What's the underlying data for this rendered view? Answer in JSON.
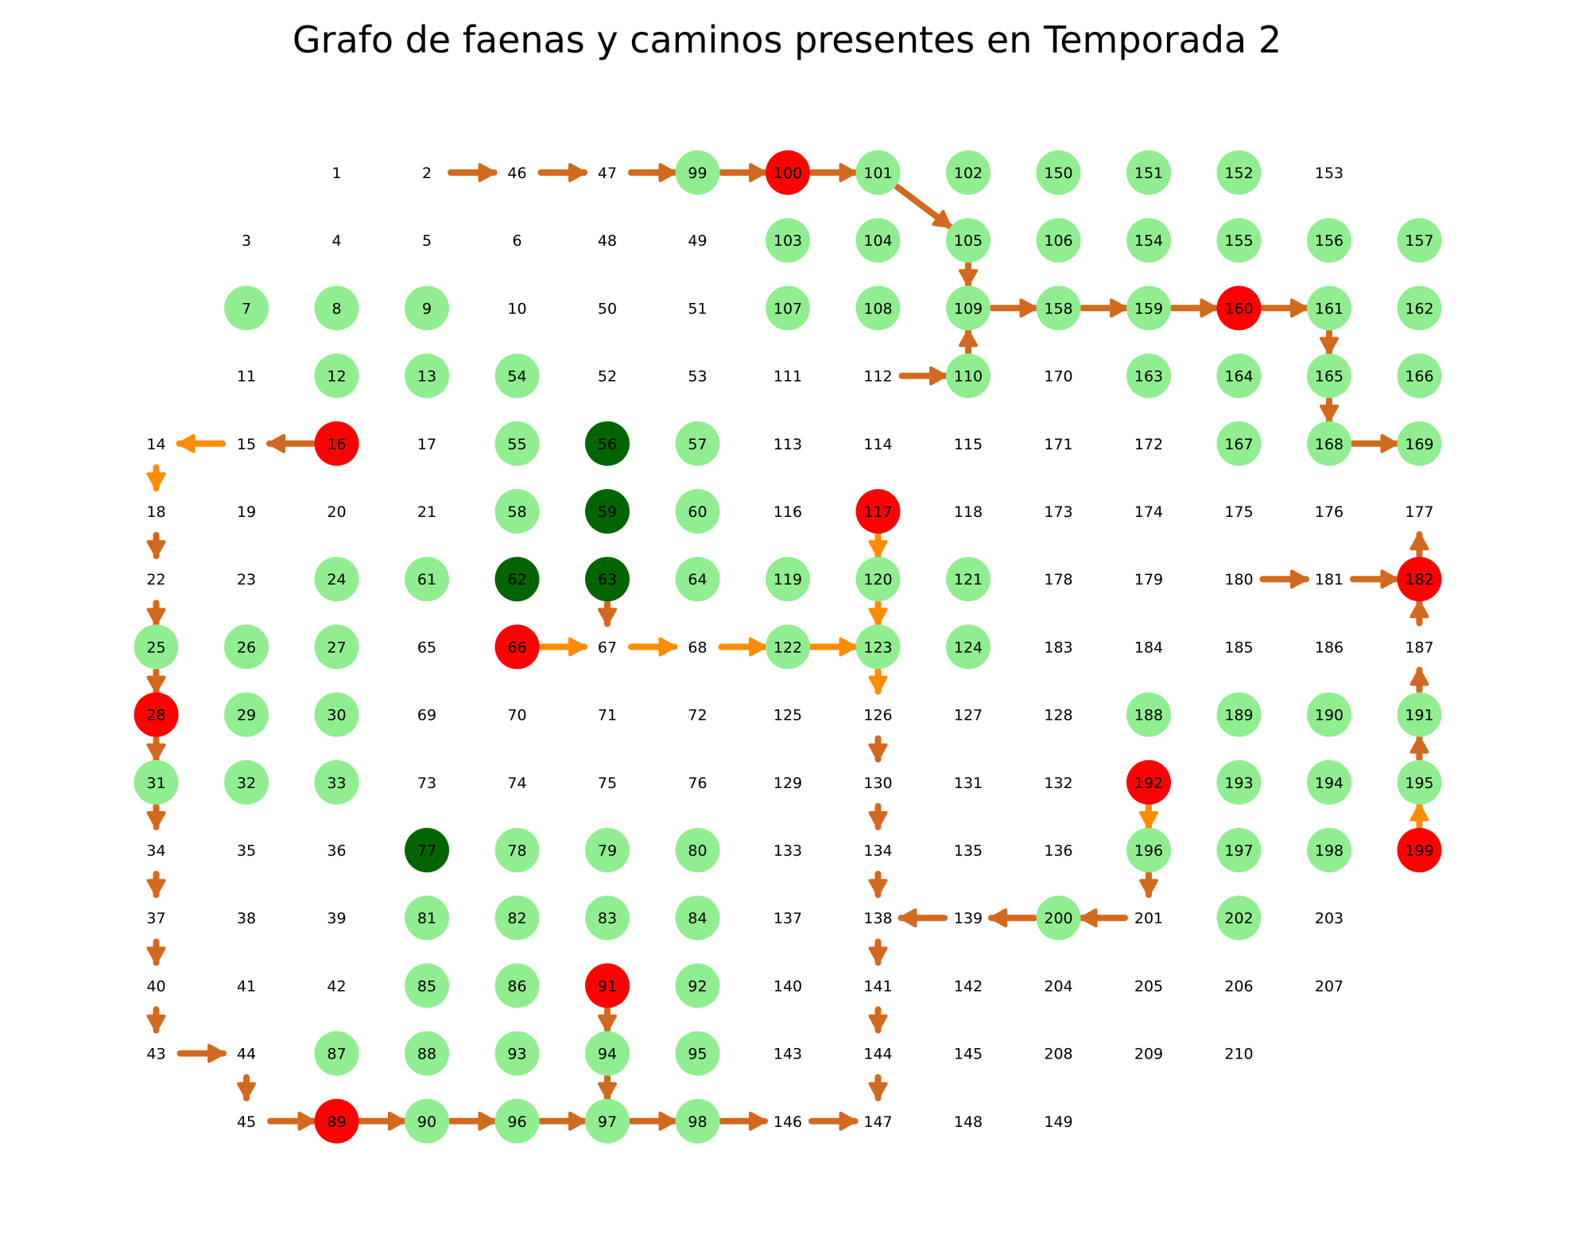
{
  "title": "Grafo de faenas y caminos presentes en Temporada 2",
  "colors": {
    "light_green": "#90ee90",
    "dark_green": "#006400",
    "red": "#ff0000",
    "edge_brown": "#d2691e",
    "edge_orange": "#ff8c00",
    "label": "#000000"
  },
  "grid": {
    "rows": [
      [
        "",
        "",
        "",
        "1",
        "2",
        "46",
        "47",
        "99",
        "100",
        "101",
        "102",
        "150",
        "151",
        "152",
        "153"
      ],
      [
        "",
        "",
        "3",
        "4",
        "5",
        "6",
        "48",
        "49",
        "103",
        "104",
        "105",
        "106",
        "154",
        "155",
        "156",
        "157"
      ],
      [
        "",
        "",
        "7",
        "8",
        "9",
        "10",
        "50",
        "51",
        "107",
        "108",
        "109",
        "158",
        "159",
        "160",
        "161",
        "162"
      ],
      [
        "",
        "",
        "11",
        "12",
        "13",
        "54",
        "52",
        "53",
        "111",
        "112",
        "110",
        "170",
        "163",
        "164",
        "165",
        "166"
      ],
      [
        "",
        "14",
        "15",
        "16",
        "17",
        "55",
        "56",
        "57",
        "113",
        "114",
        "115",
        "171",
        "172",
        "167",
        "168",
        "169"
      ],
      [
        "",
        "18",
        "19",
        "20",
        "21",
        "58",
        "59",
        "60",
        "116",
        "117",
        "118",
        "173",
        "174",
        "175",
        "176",
        "177"
      ],
      [
        "",
        "22",
        "23",
        "24",
        "61",
        "62",
        "63",
        "64",
        "119",
        "120",
        "121",
        "178",
        "179",
        "180",
        "181",
        "182"
      ],
      [
        "",
        "25",
        "26",
        "27",
        "65",
        "66",
        "67",
        "68",
        "122",
        "123",
        "124",
        "183",
        "184",
        "185",
        "186",
        "187"
      ],
      [
        "",
        "28",
        "29",
        "30",
        "69",
        "70",
        "71",
        "72",
        "125",
        "126",
        "127",
        "128",
        "188",
        "189",
        "190",
        "191"
      ],
      [
        "",
        "31",
        "32",
        "33",
        "73",
        "74",
        "75",
        "76",
        "129",
        "130",
        "131",
        "132",
        "192",
        "193",
        "194",
        "195"
      ],
      [
        "",
        "34",
        "35",
        "36",
        "77",
        "78",
        "79",
        "80",
        "133",
        "134",
        "135",
        "136",
        "196",
        "197",
        "198",
        "199"
      ],
      [
        "",
        "37",
        "38",
        "39",
        "81",
        "82",
        "83",
        "84",
        "137",
        "138",
        "139",
        "200",
        "201",
        "202",
        "203",
        ""
      ],
      [
        "",
        "40",
        "41",
        "42",
        "85",
        "86",
        "91",
        "92",
        "140",
        "141",
        "142",
        "204",
        "205",
        "206",
        "207",
        ""
      ],
      [
        "",
        "43",
        "44",
        "87",
        "88",
        "93",
        "94",
        "95",
        "143",
        "144",
        "145",
        "208",
        "209",
        "210",
        "",
        ""
      ],
      [
        "",
        "",
        "45",
        "89",
        "90",
        "96",
        "97",
        "98",
        "146",
        "147",
        "148",
        "149",
        "",
        "",
        "",
        ""
      ]
    ]
  },
  "node_status": {
    "light": [
      "7",
      "8",
      "9",
      "12",
      "13",
      "24",
      "25",
      "26",
      "27",
      "29",
      "30",
      "31",
      "32",
      "33",
      "54",
      "55",
      "57",
      "58",
      "60",
      "61",
      "64",
      "78",
      "79",
      "80",
      "81",
      "82",
      "83",
      "84",
      "85",
      "86",
      "87",
      "88",
      "90",
      "92",
      "93",
      "94",
      "95",
      "96",
      "97",
      "98",
      "99",
      "101",
      "102",
      "103",
      "104",
      "105",
      "106",
      "107",
      "108",
      "109",
      "110",
      "119",
      "120",
      "121",
      "122",
      "123",
      "124",
      "150",
      "151",
      "152",
      "154",
      "155",
      "156",
      "157",
      "158",
      "159",
      "161",
      "162",
      "163",
      "164",
      "165",
      "166",
      "167",
      "168",
      "169",
      "188",
      "189",
      "190",
      "191",
      "193",
      "194",
      "195",
      "196",
      "197",
      "198",
      "200",
      "202"
    ],
    "dark": [
      "56",
      "59",
      "62",
      "63",
      "77"
    ],
    "red": [
      "16",
      "28",
      "66",
      "89",
      "91",
      "100",
      "117",
      "160",
      "182",
      "192",
      "199"
    ]
  },
  "edges": [
    {
      "from": "2",
      "to": "46",
      "color": "brown"
    },
    {
      "from": "46",
      "to": "47",
      "color": "brown"
    },
    {
      "from": "47",
      "to": "99",
      "color": "brown"
    },
    {
      "from": "99",
      "to": "100",
      "color": "brown"
    },
    {
      "from": "100",
      "to": "101",
      "color": "brown"
    },
    {
      "from": "101",
      "to": "105",
      "color": "brown"
    },
    {
      "from": "105",
      "to": "109",
      "color": "brown"
    },
    {
      "from": "110",
      "to": "109",
      "color": "brown"
    },
    {
      "from": "112",
      "to": "110",
      "color": "brown"
    },
    {
      "from": "109",
      "to": "158",
      "color": "brown"
    },
    {
      "from": "158",
      "to": "159",
      "color": "brown"
    },
    {
      "from": "159",
      "to": "160",
      "color": "brown"
    },
    {
      "from": "160",
      "to": "161",
      "color": "brown"
    },
    {
      "from": "161",
      "to": "165",
      "color": "brown"
    },
    {
      "from": "165",
      "to": "168",
      "color": "brown"
    },
    {
      "from": "168",
      "to": "169",
      "color": "brown"
    },
    {
      "from": "182",
      "to": "177",
      "color": "brown"
    },
    {
      "from": "180",
      "to": "181",
      "color": "brown"
    },
    {
      "from": "181",
      "to": "182",
      "color": "brown"
    },
    {
      "from": "187",
      "to": "182",
      "color": "brown"
    },
    {
      "from": "191",
      "to": "187",
      "color": "brown"
    },
    {
      "from": "195",
      "to": "191",
      "color": "brown"
    },
    {
      "from": "199",
      "to": "195",
      "color": "orange"
    },
    {
      "from": "16",
      "to": "15",
      "color": "brown"
    },
    {
      "from": "15",
      "to": "14",
      "color": "orange"
    },
    {
      "from": "14",
      "to": "18",
      "color": "orange"
    },
    {
      "from": "18",
      "to": "22",
      "color": "brown"
    },
    {
      "from": "22",
      "to": "25",
      "color": "brown"
    },
    {
      "from": "25",
      "to": "28",
      "color": "brown"
    },
    {
      "from": "28",
      "to": "31",
      "color": "brown"
    },
    {
      "from": "31",
      "to": "34",
      "color": "brown"
    },
    {
      "from": "34",
      "to": "37",
      "color": "brown"
    },
    {
      "from": "37",
      "to": "40",
      "color": "brown"
    },
    {
      "from": "40",
      "to": "43",
      "color": "brown"
    },
    {
      "from": "43",
      "to": "44",
      "color": "brown"
    },
    {
      "from": "44",
      "to": "45",
      "color": "brown"
    },
    {
      "from": "45",
      "to": "89",
      "color": "brown"
    },
    {
      "from": "89",
      "to": "90",
      "color": "brown"
    },
    {
      "from": "90",
      "to": "96",
      "color": "brown"
    },
    {
      "from": "96",
      "to": "97",
      "color": "brown"
    },
    {
      "from": "97",
      "to": "98",
      "color": "brown"
    },
    {
      "from": "98",
      "to": "146",
      "color": "brown"
    },
    {
      "from": "146",
      "to": "147",
      "color": "brown"
    },
    {
      "from": "144",
      "to": "147",
      "color": "brown"
    },
    {
      "from": "141",
      "to": "144",
      "color": "brown"
    },
    {
      "from": "138",
      "to": "141",
      "color": "brown"
    },
    {
      "from": "134",
      "to": "138",
      "color": "brown"
    },
    {
      "from": "130",
      "to": "134",
      "color": "brown"
    },
    {
      "from": "126",
      "to": "130",
      "color": "brown"
    },
    {
      "from": "123",
      "to": "126",
      "color": "orange"
    },
    {
      "from": "117",
      "to": "120",
      "color": "orange"
    },
    {
      "from": "120",
      "to": "123",
      "color": "orange"
    },
    {
      "from": "66",
      "to": "67",
      "color": "orange"
    },
    {
      "from": "67",
      "to": "68",
      "color": "orange"
    },
    {
      "from": "68",
      "to": "122",
      "color": "orange"
    },
    {
      "from": "122",
      "to": "123",
      "color": "orange"
    },
    {
      "from": "63",
      "to": "67",
      "color": "brown"
    },
    {
      "from": "91",
      "to": "94",
      "color": "brown"
    },
    {
      "from": "94",
      "to": "97",
      "color": "brown"
    },
    {
      "from": "192",
      "to": "196",
      "color": "orange"
    },
    {
      "from": "196",
      "to": "201",
      "color": "brown"
    },
    {
      "from": "201",
      "to": "200",
      "color": "brown"
    },
    {
      "from": "200",
      "to": "139",
      "color": "brown"
    },
    {
      "from": "139",
      "to": "138",
      "color": "brown"
    }
  ]
}
